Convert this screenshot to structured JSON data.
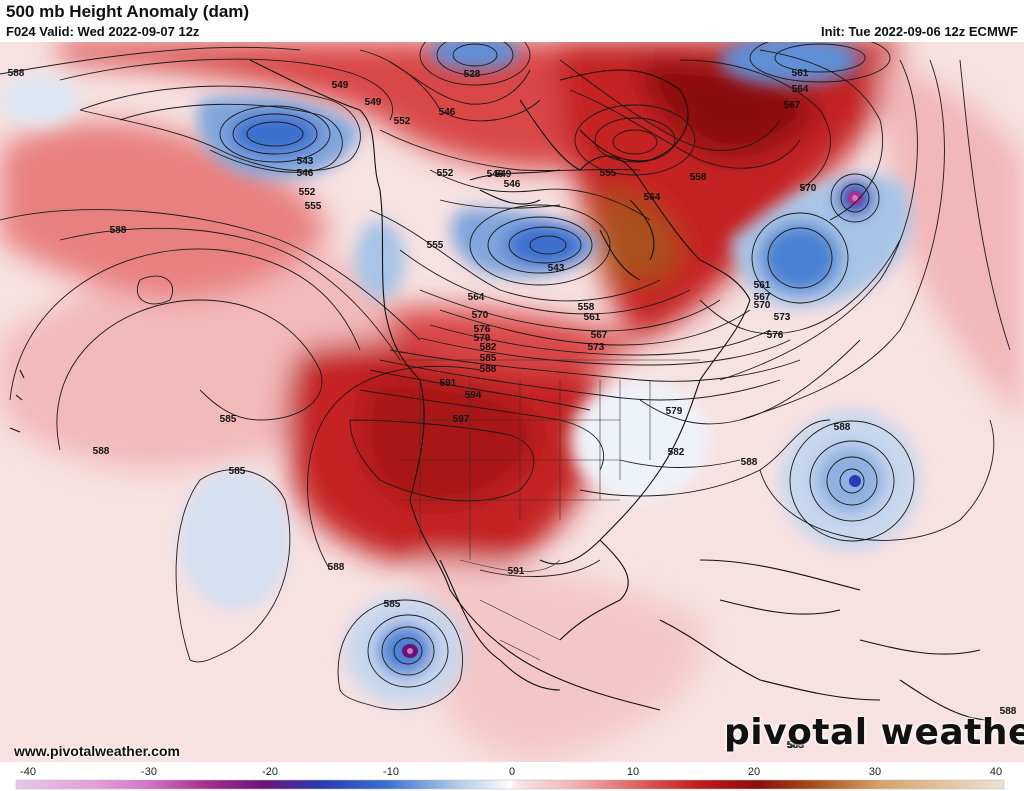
{
  "header": {
    "title": "500 mb Height Anomaly (dam)",
    "valid": "F024 Valid: Wed 2022-09-07 12z",
    "init": "Init: Tue 2022-09-06 12z ECMWF"
  },
  "footer": {
    "website": "www.pivotalweather.com",
    "brand": "pivotal weather"
  },
  "colorbar": {
    "min": -40,
    "max": 40,
    "tick_labels": [
      "-40",
      "-30",
      "-20",
      "-10",
      "0",
      "10",
      "20",
      "30",
      "40"
    ],
    "colors": {
      "neg40": "#e8c6ea",
      "neg30": "#d479c8",
      "neg25": "#a8328f",
      "neg20": "#6a1475",
      "neg15": "#2a3bb5",
      "neg10": "#3a70cf",
      "neg5": "#a7c4e6",
      "neg1": "#e7eef6",
      "zero": "#ffffff",
      "pos1": "#f8e3e3",
      "pos5": "#f2b7b7",
      "pos10": "#e06767",
      "pos15": "#c21c1c",
      "pos20": "#8a0e0e",
      "pos25": "#a8511b",
      "pos30": "#d7a26a",
      "pos40": "#ede1d4"
    }
  },
  "map_labels": [
    "588",
    "549",
    "549",
    "528",
    "546",
    "552",
    "561",
    "564",
    "567",
    "543",
    "546",
    "552",
    "555",
    "546",
    "552",
    "549",
    "546",
    "558",
    "555",
    "564",
    "570",
    "588",
    "555",
    "543",
    "561",
    "567",
    "570",
    "573",
    "576",
    "564",
    "558",
    "570",
    "576",
    "561",
    "579",
    "567",
    "573",
    "582",
    "585",
    "588",
    "591",
    "594",
    "597",
    "585",
    "579",
    "582",
    "588",
    "588",
    "588",
    "585",
    "588",
    "591",
    "585",
    "588",
    "588",
    "585"
  ]
}
